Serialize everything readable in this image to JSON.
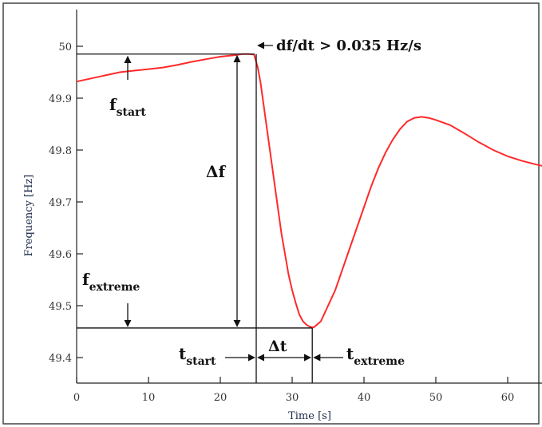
{
  "chart_data": {
    "type": "line",
    "xlabel": "Time [s]",
    "ylabel": "Frequency [Hz]",
    "xlim": [
      0,
      65
    ],
    "ylim": [
      49.35,
      50.02
    ],
    "xticks": [
      0,
      10,
      20,
      30,
      40,
      50,
      60
    ],
    "yticks": [
      49.4,
      49.5,
      49.6,
      49.7,
      49.8,
      49.9,
      50.0
    ],
    "ytick_labels": [
      "49.4",
      "49.5",
      "49.6",
      "49.7",
      "49.8",
      "49.9",
      "50"
    ],
    "grid": false,
    "line_color": "#ff2a2a",
    "annotation_color": "#111111",
    "series": [
      {
        "x": [
          0,
          2,
          4,
          6,
          8,
          10,
          12,
          14,
          16,
          18,
          20,
          22,
          23,
          24,
          24.7,
          25.2,
          25.6,
          26,
          26.5,
          27,
          27.5,
          28,
          28.5,
          29,
          29.5,
          30,
          30.5,
          31,
          31.5,
          32,
          32.5,
          33,
          34,
          35,
          36,
          37,
          38,
          39,
          40,
          41,
          42,
          43,
          44,
          45,
          46,
          47,
          48,
          49,
          50,
          52,
          54,
          56,
          58,
          60,
          62,
          64,
          65
        ],
        "y": [
          49.932,
          49.938,
          49.944,
          49.95,
          49.953,
          49.956,
          49.959,
          49.964,
          49.97,
          49.975,
          49.98,
          49.983,
          49.985,
          49.985,
          49.984,
          49.96,
          49.93,
          49.89,
          49.84,
          49.79,
          49.74,
          49.69,
          49.64,
          49.6,
          49.56,
          49.53,
          49.505,
          49.483,
          49.47,
          49.463,
          49.459,
          49.458,
          49.47,
          49.5,
          49.53,
          49.57,
          49.61,
          49.65,
          49.69,
          49.73,
          49.765,
          49.795,
          49.82,
          49.84,
          49.855,
          49.862,
          49.864,
          49.862,
          49.858,
          49.848,
          49.832,
          49.815,
          49.8,
          49.788,
          49.779,
          49.772,
          49.769
        ]
      }
    ],
    "annotations": {
      "rate": "df/dt > 0.035 Hz/s",
      "f_start": {
        "main": "f",
        "sub": "start"
      },
      "f_extreme": {
        "main": "f",
        "sub": "extreme"
      },
      "delta_f": "Δf",
      "t_start": {
        "main": "t",
        "sub": "start"
      },
      "delta_t": "Δt",
      "t_extreme": {
        "main": "t",
        "sub": "extreme"
      },
      "f_start_value": 49.985,
      "f_extreme_value": 49.457,
      "t_start_value": 25,
      "t_extreme_value": 32.8
    }
  }
}
